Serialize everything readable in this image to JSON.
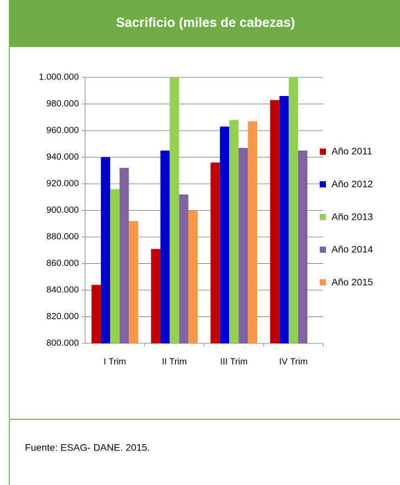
{
  "chart_data": {
    "type": "bar",
    "title": "Sacrificio (miles de cabezas)",
    "categories": [
      "I Trim",
      "II Trim",
      "III Trim",
      "IV Trim"
    ],
    "series": [
      {
        "name": "Año 2011",
        "color": "#c00000",
        "values": [
          844000,
          871000,
          936000,
          983000
        ]
      },
      {
        "name": "Año 2012",
        "color": "#0000cc",
        "values": [
          940000,
          945000,
          963000,
          986000
        ]
      },
      {
        "name": "Año 2013",
        "color": "#92d050",
        "values": [
          916000,
          1000000,
          968000,
          1000000
        ]
      },
      {
        "name": "Año 2014",
        "color": "#8064a2",
        "values": [
          932000,
          912000,
          947000,
          945000
        ]
      },
      {
        "name": "Año 2015",
        "color": "#f79646",
        "values": [
          892000,
          900000,
          967000,
          null
        ]
      }
    ],
    "ylim": [
      800000,
      1000000
    ],
    "yticks": [
      {
        "value": 800000,
        "label": "800.000"
      },
      {
        "value": 820000,
        "label": "820.000"
      },
      {
        "value": 840000,
        "label": "840.000"
      },
      {
        "value": 860000,
        "label": "860.000"
      },
      {
        "value": 880000,
        "label": "880.000"
      },
      {
        "value": 900000,
        "label": "900.000"
      },
      {
        "value": 920000,
        "label": "920.000"
      },
      {
        "value": 940000,
        "label": "940.000"
      },
      {
        "value": 960000,
        "label": "960.000"
      },
      {
        "value": 980000,
        "label": "980.000"
      },
      {
        "value": 1000000,
        "label": "1.000.000"
      }
    ],
    "grid": true,
    "legend": "right"
  },
  "source": "Fuente: ESAG- DANE. 2015."
}
